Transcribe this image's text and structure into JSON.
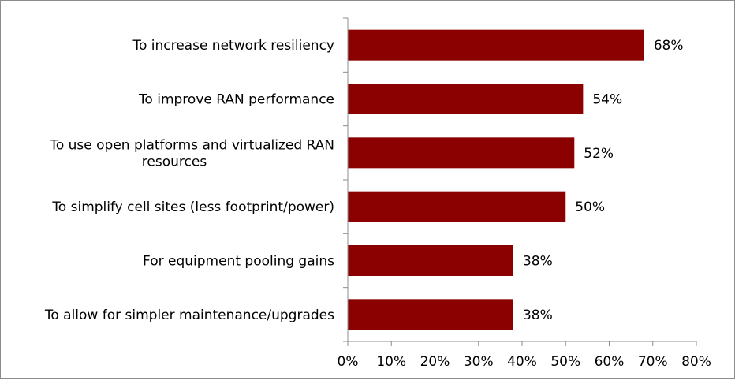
{
  "chart_data": {
    "type": "bar",
    "orientation": "horizontal",
    "categories": [
      [
        "To increase network resiliency"
      ],
      [
        "To improve RAN performance"
      ],
      [
        "To use open platforms and virtualized RAN",
        "resources"
      ],
      [
        "To simplify cell sites (less footprint/power)"
      ],
      [
        "For equipment pooling gains"
      ],
      [
        "To allow for simpler maintenance/upgrades"
      ]
    ],
    "values": [
      68,
      54,
      52,
      50,
      38,
      38
    ],
    "data_labels": [
      "68%",
      "54%",
      "52%",
      "50%",
      "38%",
      "38%"
    ],
    "xlim": [
      0,
      80
    ],
    "x_ticks": [
      0,
      10,
      20,
      30,
      40,
      50,
      60,
      70,
      80
    ],
    "x_tick_labels": [
      "0%",
      "10%",
      "20%",
      "30%",
      "40%",
      "50%",
      "60%",
      "70%",
      "80%"
    ],
    "bar_color": "#8B0000",
    "grid": false,
    "legend": "none"
  }
}
